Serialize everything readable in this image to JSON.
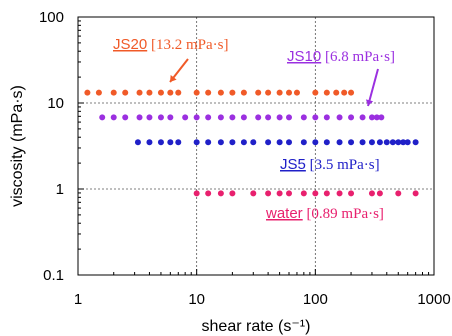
{
  "chart_data": {
    "type": "scatter",
    "xscale": "log",
    "yscale": "log",
    "xlim": [
      1,
      1000
    ],
    "ylim": [
      0.1,
      100
    ],
    "xlabel": "shear rate (s⁻¹)",
    "ylabel": "viscosity (mPa·s)",
    "xticks": [
      "1",
      "10",
      "100",
      "1000"
    ],
    "yticks": [
      "0.1",
      "1",
      "10",
      "100"
    ],
    "grid": "dashed at 10 and 100 (x), 1 and 10 (y)",
    "legend": "none",
    "series": [
      {
        "name": "JS20",
        "color": "#f05a28",
        "y": 13.2,
        "x": [
          1.2,
          1.5,
          2,
          2.5,
          3.3,
          4,
          5,
          6,
          7,
          10,
          12.5,
          16,
          20,
          25,
          33,
          40,
          50,
          60,
          70,
          100,
          125,
          150,
          175,
          200
        ]
      },
      {
        "name": "JS10",
        "color": "#9b30e0",
        "y": 6.8,
        "x": [
          1.6,
          2,
          2.5,
          3.3,
          4,
          5,
          6,
          8,
          10,
          12.5,
          16,
          20,
          25,
          33,
          40,
          50,
          60,
          80,
          100,
          125,
          160,
          200,
          250,
          300,
          330,
          360
        ]
      },
      {
        "name": "JS5",
        "color": "#2020c8",
        "y": 3.5,
        "x": [
          3.2,
          4,
          5,
          6,
          7,
          10,
          12.5,
          16,
          20,
          25,
          30,
          40,
          50,
          60,
          80,
          100,
          125,
          160,
          200,
          250,
          300,
          350,
          400,
          450,
          500,
          550,
          600,
          700
        ]
      },
      {
        "name": "water",
        "color": "#e8206e",
        "y": 0.89,
        "x": [
          10,
          12.5,
          16,
          20,
          30,
          40,
          50,
          60,
          80,
          100,
          125,
          160,
          200,
          300,
          350,
          500,
          700
        ]
      }
    ],
    "annotations": [
      {
        "name": "JS20",
        "value": "[13.2 mPa·s]",
        "color": "#f05a28"
      },
      {
        "name": "JS10",
        "value": "[6.8 mPa·s]",
        "color": "#9b30e0"
      },
      {
        "name": "JS5",
        "value": "[3.5 mPa·s]",
        "color": "#2020c8"
      },
      {
        "name": "water",
        "value": "[0.89 mPa·s]",
        "color": "#e8206e"
      }
    ]
  }
}
